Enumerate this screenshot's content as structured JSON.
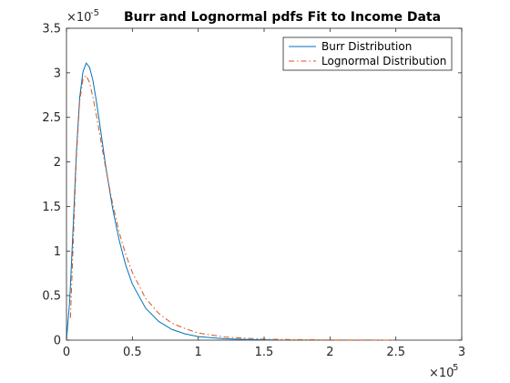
{
  "chart_data": {
    "type": "line",
    "title": "Burr and Lognormal pdfs Fit to Income Data",
    "xlabel": "",
    "ylabel": "",
    "xlim": [
      0,
      300000
    ],
    "ylim": [
      0,
      3.5e-05
    ],
    "x_ticks": [
      0,
      50000,
      100000,
      150000,
      200000,
      250000,
      300000
    ],
    "x_tick_labels": [
      "0",
      "0.5",
      "1",
      "1.5",
      "2",
      "2.5",
      "3"
    ],
    "y_ticks": [
      0,
      5e-06,
      1e-05,
      1.5e-05,
      2e-05,
      2.5e-05,
      3e-05,
      3.5e-05
    ],
    "y_tick_labels": [
      "0",
      "0.5",
      "1",
      "1.5",
      "2",
      "2.5",
      "3",
      "3.5"
    ],
    "x_exponent_label": {
      "base": "×10",
      "exp": "5"
    },
    "y_exponent_label": {
      "base": "×10",
      "exp": "-5"
    },
    "legend_position": "top-right",
    "grid": false,
    "series": [
      {
        "name": "Burr Distribution",
        "color": "#0072BD",
        "style": "solid",
        "x": [
          0,
          2500,
          5000,
          7500,
          10000,
          12500,
          15000,
          17500,
          20000,
          22500,
          25000,
          30000,
          35000,
          40000,
          45000,
          50000,
          60000,
          70000,
          80000,
          90000,
          100000,
          120000,
          140000,
          158000
        ],
        "y": [
          0,
          4.5e-06,
          1.25e-05,
          2.1e-05,
          2.72e-05,
          3.01e-05,
          3.11e-05,
          3.06e-05,
          2.92e-05,
          2.7e-05,
          2.45e-05,
          1.93e-05,
          1.48e-05,
          1.12e-05,
          8.4e-06,
          6.3e-06,
          3.6e-06,
          2.1e-06,
          1.2e-06,
          7e-07,
          4e-07,
          1.5e-07,
          6e-08,
          2e-08
        ]
      },
      {
        "name": "Lognormal Distribution",
        "color": "#D95319",
        "style": "dashdot",
        "x": [
          3000,
          5000,
          7500,
          10000,
          12500,
          15000,
          17500,
          20000,
          22500,
          25000,
          30000,
          35000,
          40000,
          45000,
          50000,
          60000,
          70000,
          80000,
          90000,
          100000,
          120000,
          150000,
          200000,
          250000
        ],
        "y": [
          2.5e-06,
          1.05e-05,
          2.05e-05,
          2.68e-05,
          2.93e-05,
          2.97e-05,
          2.89e-05,
          2.73e-05,
          2.54e-05,
          2.33e-05,
          1.91e-05,
          1.53e-05,
          1.21e-05,
          9.6e-06,
          7.6e-06,
          4.7e-06,
          3e-06,
          1.9e-06,
          1.3e-06,
          8e-07,
          3.5e-07,
          1e-07,
          2e-08,
          0.0
        ]
      }
    ]
  }
}
